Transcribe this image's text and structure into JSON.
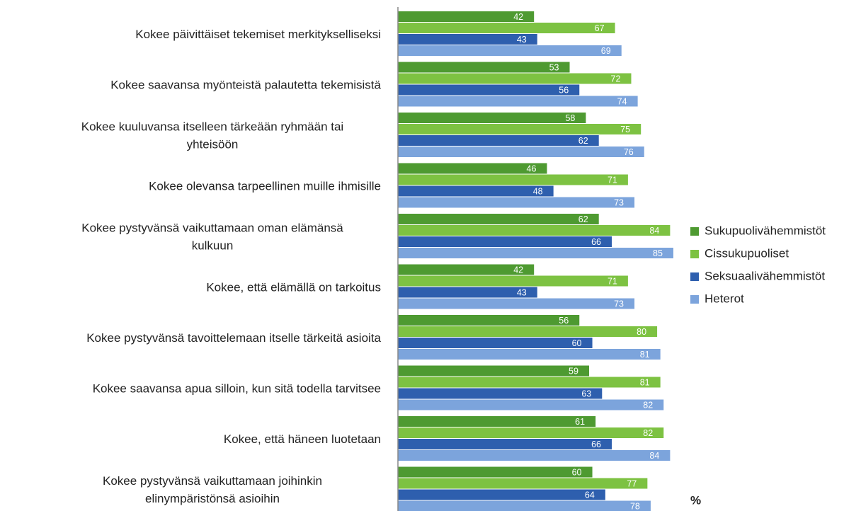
{
  "chart_data": {
    "type": "hbar",
    "categories": [
      "Kokee päivittäiset tekemiset merkitykselliseksi",
      "Kokee saavansa myönteistä palautetta tekemisistä",
      "Kokee kuuluvansa itselleen tärkeään ryhmään tai\nyhteisöön",
      "Kokee olevansa tarpeellinen muille ihmisille",
      "Kokee pystyvänsä vaikuttamaan oman elämänsä\nkulkuun",
      "Kokee, että elämällä on tarkoitus",
      "Kokee pystyvänsä tavoittelemaan itselle tärkeitä asioita",
      "Kokee saavansa apua silloin, kun sitä todella tarvitsee",
      "Kokee, että häneen luotetaan",
      "Kokee pystyvänsä vaikuttamaan joihinkin\nelinympäristönsä asioihin"
    ],
    "series": [
      {
        "name": "Sukupuolivähemmistöt",
        "color": "#4e9a31",
        "values": [
          42,
          53,
          58,
          46,
          62,
          42,
          56,
          59,
          61,
          60
        ]
      },
      {
        "name": "Cissukupuoliset",
        "color": "#7dc242",
        "values": [
          67,
          72,
          75,
          71,
          84,
          71,
          80,
          81,
          82,
          77
        ]
      },
      {
        "name": "Seksuaalivähemmistöt",
        "color": "#2e5fae",
        "values": [
          43,
          56,
          62,
          48,
          66,
          43,
          60,
          63,
          66,
          64
        ]
      },
      {
        "name": "Heterot",
        "color": "#7ca4dc",
        "values": [
          69,
          74,
          76,
          73,
          85,
          73,
          81,
          82,
          84,
          78
        ]
      }
    ],
    "x_label": "%",
    "xlim": [
      0,
      100
    ],
    "legend": "right"
  }
}
